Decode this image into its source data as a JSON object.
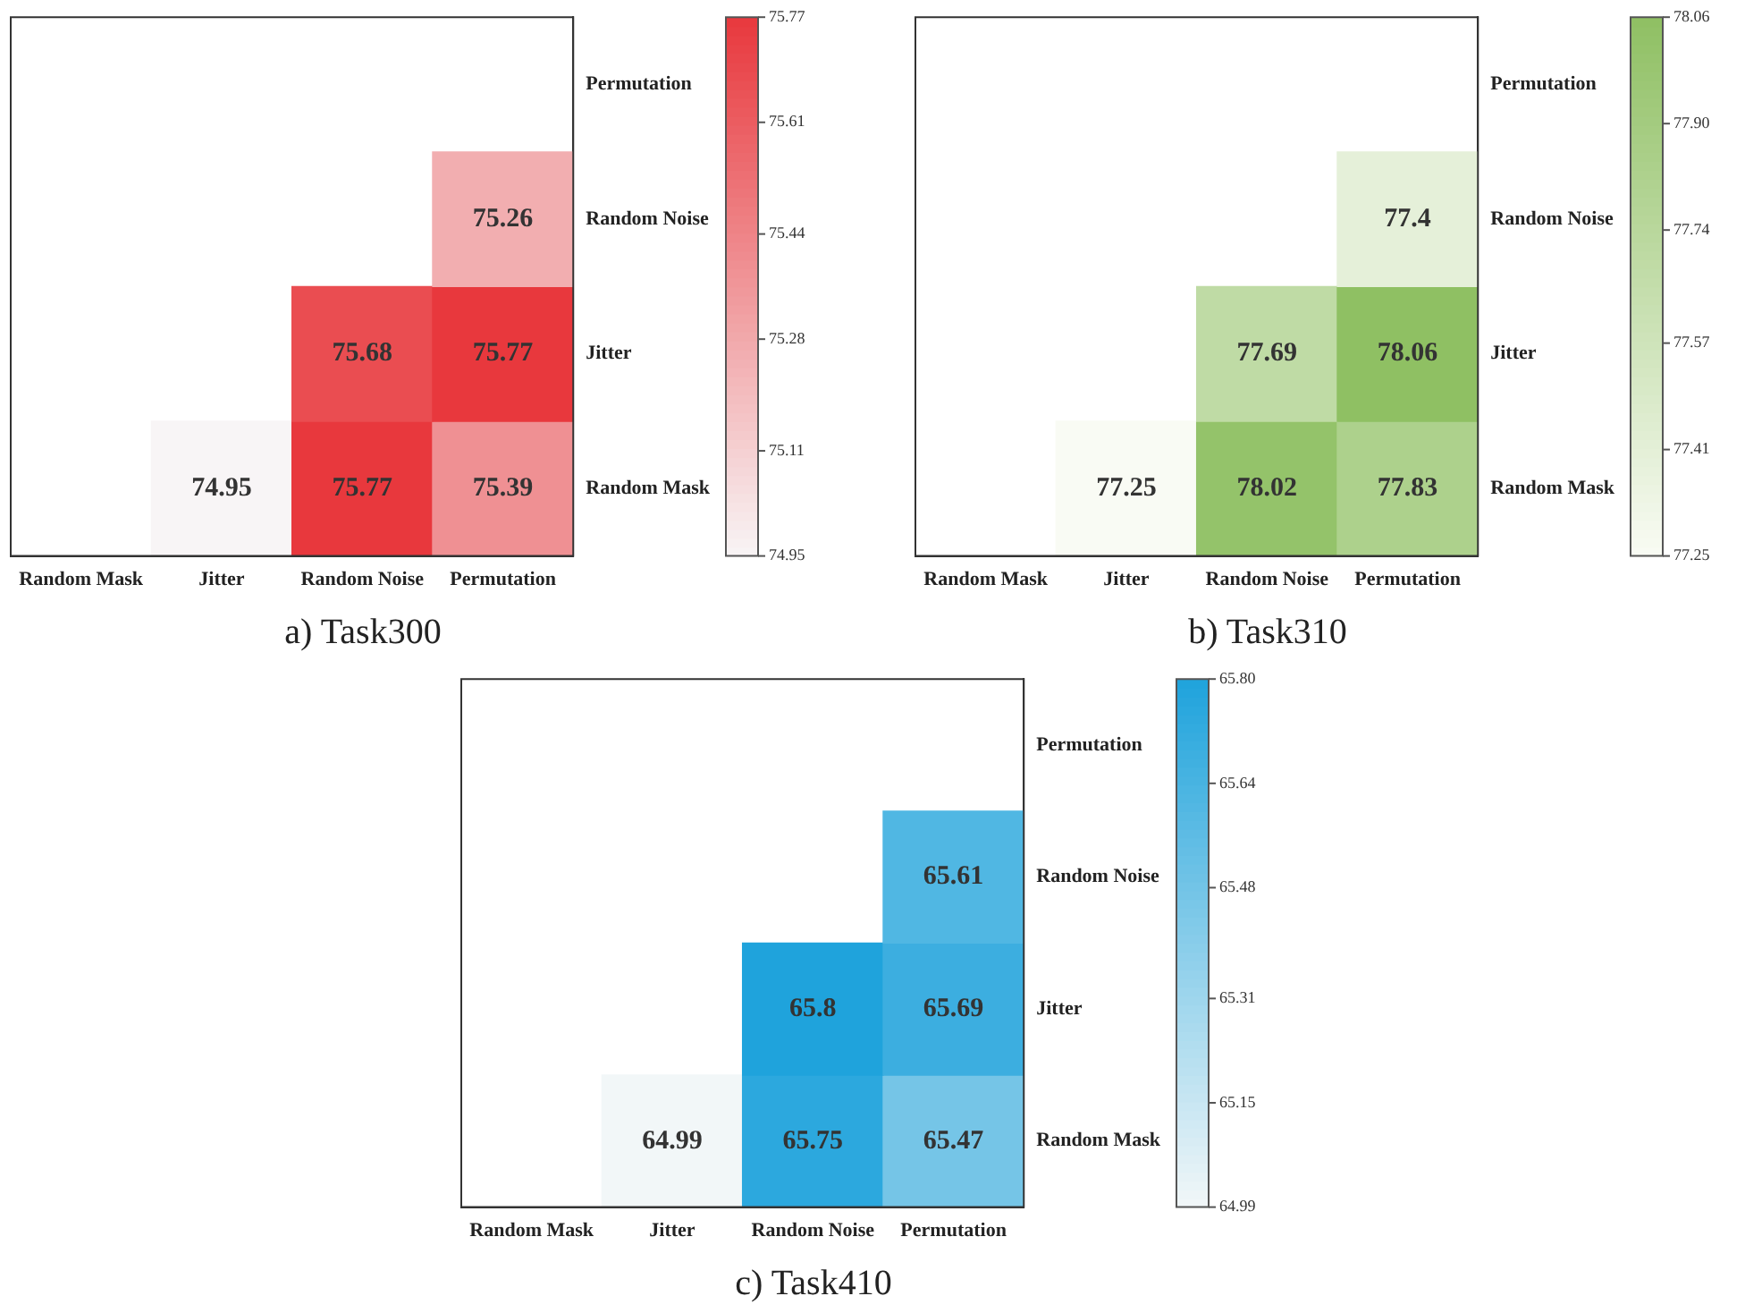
{
  "chart_data": [
    {
      "type": "heatmap",
      "title": "a) Task300",
      "categories": [
        "Random Mask",
        "Jitter",
        "Random Noise",
        "Permutation"
      ],
      "y_categories": [
        "Permutation",
        "Random Noise",
        "Jitter",
        "Random Mask"
      ],
      "cells": [
        [
          null,
          null,
          null,
          null
        ],
        [
          null,
          null,
          null,
          75.26
        ],
        [
          null,
          null,
          75.68,
          75.77
        ],
        [
          null,
          74.95,
          75.77,
          75.39
        ]
      ],
      "clim": [
        74.95,
        75.77
      ],
      "cticks": [
        74.95,
        75.11,
        75.28,
        75.44,
        75.61,
        75.77
      ],
      "colors": [
        "#f8f5f6",
        "#e8383d"
      ],
      "data_labels": true,
      "grid": false
    },
    {
      "type": "heatmap",
      "title": "b) Task310",
      "categories": [
        "Random Mask",
        "Jitter",
        "Random Noise",
        "Permutation"
      ],
      "y_categories": [
        "Permutation",
        "Random Noise",
        "Jitter",
        "Random Mask"
      ],
      "cells": [
        [
          null,
          null,
          null,
          null
        ],
        [
          null,
          null,
          null,
          77.4
        ],
        [
          null,
          null,
          77.69,
          78.06
        ],
        [
          null,
          77.25,
          78.02,
          77.83
        ]
      ],
      "clim": [
        77.25,
        78.06
      ],
      "cticks": [
        77.25,
        77.41,
        77.57,
        77.74,
        {
          "value": 77.9,
          "label": "77.90"
        },
        78.06
      ],
      "colors": [
        "#f9fbf4",
        "#8fc063"
      ],
      "data_labels": true,
      "grid": false
    },
    {
      "type": "heatmap",
      "title": "c) Task410",
      "categories": [
        "Random Mask",
        "Jitter",
        "Random Noise",
        "Permutation"
      ],
      "y_categories": [
        "Permutation",
        "Random Noise",
        "Jitter",
        "Random Mask"
      ],
      "cells": [
        [
          null,
          null,
          null,
          null
        ],
        [
          null,
          null,
          null,
          65.61
        ],
        [
          null,
          null,
          65.8,
          65.69
        ],
        [
          null,
          64.99,
          65.75,
          65.47
        ]
      ],
      "clim": [
        64.99,
        65.8
      ],
      "cticks": [
        64.99,
        65.15,
        65.31,
        65.48,
        65.64,
        {
          "value": 65.8,
          "label": "65.80"
        }
      ],
      "colors": [
        "#f2f7f8",
        "#1fa3dc"
      ],
      "data_labels": true,
      "grid": false
    }
  ]
}
